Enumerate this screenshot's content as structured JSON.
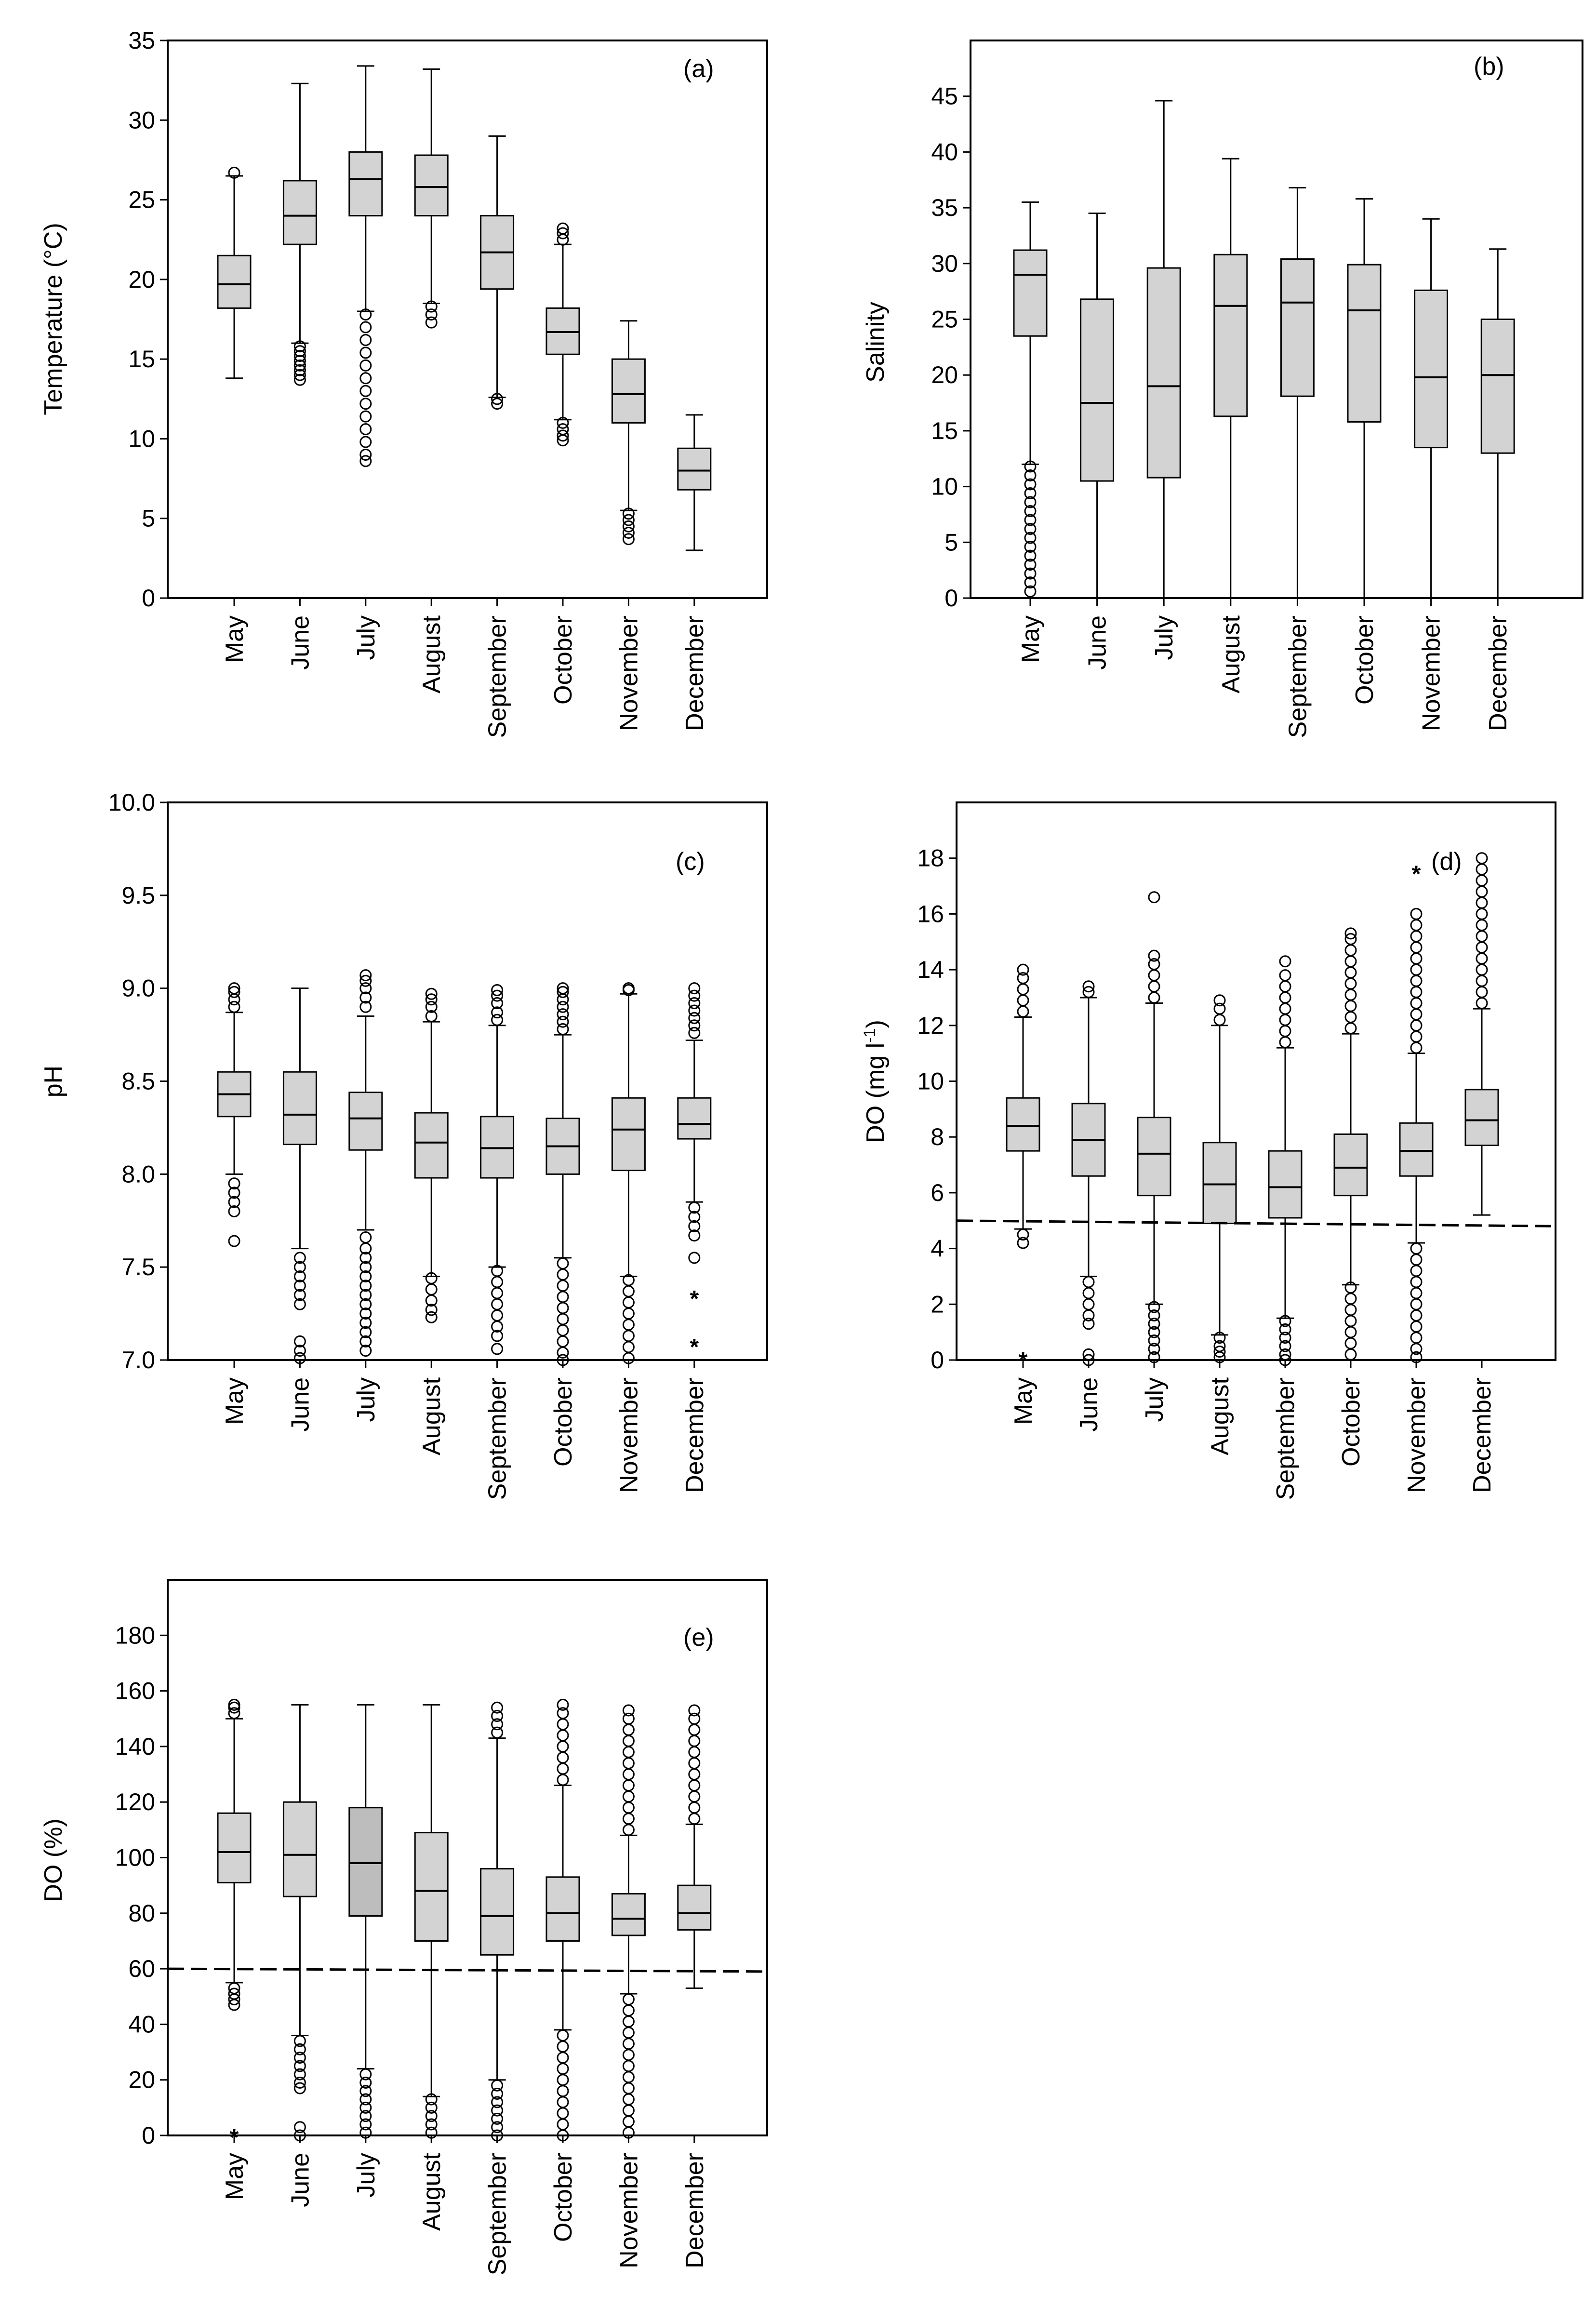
{
  "figure": {
    "months": [
      "May",
      "June",
      "July",
      "August",
      "September",
      "October",
      "November",
      "December"
    ]
  },
  "chart_data": [
    {
      "id": "a",
      "type": "boxplot",
      "panel_label": "(a)",
      "ylabel": "Temperature (°C)",
      "ylim": [
        0,
        35
      ],
      "yticks": [
        0,
        5,
        10,
        15,
        20,
        25,
        30,
        35
      ],
      "ytick_labels": [
        "0",
        "5",
        "10",
        "15",
        "20",
        "25",
        "30",
        "35"
      ],
      "categories": [
        "May",
        "June",
        "July",
        "August",
        "September",
        "October",
        "November",
        "December"
      ],
      "boxes": [
        {
          "min": 13.8,
          "q1": 18.2,
          "median": 19.7,
          "q3": 21.5,
          "max": 26.5,
          "outliers_high": [
            26.7
          ],
          "outliers_low": []
        },
        {
          "min": 16.0,
          "q1": 22.2,
          "median": 24.0,
          "q3": 26.2,
          "max": 32.3,
          "outliers_high": [],
          "outliers_low": [
            15.8,
            15.5,
            15.2,
            14.9,
            14.6,
            14.3,
            14.0,
            13.7
          ]
        },
        {
          "min": 18.0,
          "q1": 24.0,
          "median": 26.3,
          "q3": 28.0,
          "max": 33.4,
          "outliers_high": [],
          "outliers_low": [
            17.8,
            17.0,
            16.2,
            15.4,
            14.6,
            13.8,
            13.0,
            12.2,
            11.4,
            10.6,
            9.8,
            9.0,
            8.6
          ]
        },
        {
          "min": 18.5,
          "q1": 24.0,
          "median": 25.8,
          "q3": 27.8,
          "max": 33.2,
          "outliers_high": [],
          "outliers_low": [
            18.3,
            17.8,
            17.3
          ]
        },
        {
          "min": 12.6,
          "q1": 19.4,
          "median": 21.7,
          "q3": 24.0,
          "max": 29.0,
          "outliers_high": [],
          "outliers_low": [
            12.5,
            12.2
          ]
        },
        {
          "min": 11.2,
          "q1": 15.3,
          "median": 16.7,
          "q3": 18.2,
          "max": 22.2,
          "outliers_high": [
            22.5,
            22.9,
            23.2
          ],
          "outliers_low": [
            11.0,
            10.6,
            10.2,
            9.9
          ]
        },
        {
          "min": 5.5,
          "q1": 11.0,
          "median": 12.8,
          "q3": 15.0,
          "max": 17.4,
          "outliers_high": [],
          "outliers_low": [
            5.3,
            4.9,
            4.5,
            4.1,
            3.7
          ]
        },
        {
          "min": 3.0,
          "q1": 6.8,
          "median": 8.0,
          "q3": 9.4,
          "max": 11.5,
          "outliers_high": [],
          "outliers_low": []
        }
      ],
      "reference_line": null
    },
    {
      "id": "b",
      "type": "boxplot",
      "panel_label": "(b)",
      "ylabel": "Salinity",
      "ylim": [
        0,
        50
      ],
      "yticks": [
        0,
        5,
        10,
        15,
        20,
        25,
        30,
        35,
        40,
        45
      ],
      "ytick_labels": [
        "0",
        "5",
        "10",
        "15",
        "20",
        "25",
        "30",
        "35",
        "40",
        "45"
      ],
      "categories": [
        "May",
        "June",
        "July",
        "August",
        "September",
        "October",
        "November",
        "December"
      ],
      "boxes": [
        {
          "min": 12.0,
          "q1": 23.5,
          "median": 29.0,
          "q3": 31.2,
          "max": 35.5,
          "outliers_high": [],
          "outliers_low": [
            11.8,
            11.0,
            10.2,
            9.4,
            8.6,
            7.8,
            7.0,
            6.2,
            5.4,
            4.6,
            3.8,
            3.0,
            2.2,
            1.4,
            0.6
          ]
        },
        {
          "min": 0,
          "q1": 10.5,
          "median": 17.5,
          "q3": 26.8,
          "max": 34.5,
          "outliers_high": [],
          "outliers_low": []
        },
        {
          "min": 0,
          "q1": 10.8,
          "median": 19.0,
          "q3": 29.6,
          "max": 44.6,
          "outliers_high": [],
          "outliers_low": []
        },
        {
          "min": 0,
          "q1": 16.3,
          "median": 26.2,
          "q3": 30.8,
          "max": 39.4,
          "outliers_high": [],
          "outliers_low": []
        },
        {
          "min": 0,
          "q1": 18.1,
          "median": 26.5,
          "q3": 30.4,
          "max": 36.8,
          "outliers_high": [],
          "outliers_low": []
        },
        {
          "min": 0,
          "q1": 15.8,
          "median": 25.8,
          "q3": 29.9,
          "max": 35.8,
          "outliers_high": [],
          "outliers_low": []
        },
        {
          "min": 0,
          "q1": 13.5,
          "median": 19.8,
          "q3": 27.6,
          "max": 34.0,
          "outliers_high": [],
          "outliers_low": []
        },
        {
          "min": 0,
          "q1": 13.0,
          "median": 20.0,
          "q3": 25.0,
          "max": 31.3,
          "outliers_high": [],
          "outliers_low": []
        }
      ],
      "reference_line": null
    },
    {
      "id": "c",
      "type": "boxplot",
      "panel_label": "(c)",
      "ylabel": "pH",
      "ylim": [
        7.0,
        10.0
      ],
      "yticks": [
        7.0,
        7.5,
        8.0,
        8.5,
        9.0,
        9.5,
        10.0
      ],
      "ytick_labels": [
        "7.0",
        "7.5",
        "8.0",
        "8.5",
        "9.0",
        "9.5",
        "10.0"
      ],
      "categories": [
        "May",
        "June",
        "July",
        "August",
        "September",
        "October",
        "November",
        "December"
      ],
      "boxes": [
        {
          "min": 8.0,
          "q1": 8.31,
          "median": 8.43,
          "q3": 8.55,
          "max": 8.87,
          "outliers_high": [
            8.9,
            8.94,
            8.98,
            9.0
          ],
          "outliers_low": [
            7.95,
            7.9,
            7.85,
            7.8,
            7.64
          ]
        },
        {
          "min": 7.6,
          "q1": 8.16,
          "median": 8.32,
          "q3": 8.55,
          "max": 9.0,
          "outliers_high": [],
          "outliers_low": [
            7.55,
            7.5,
            7.45,
            7.4,
            7.35,
            7.3,
            7.1,
            7.05,
            7.01
          ]
        },
        {
          "min": 7.7,
          "q1": 8.13,
          "median": 8.3,
          "q3": 8.44,
          "max": 8.85,
          "outliers_high": [
            8.9,
            8.95,
            9.0,
            9.04,
            9.07
          ],
          "outliers_low": [
            7.66,
            7.6,
            7.55,
            7.5,
            7.45,
            7.4,
            7.35,
            7.3,
            7.25,
            7.2,
            7.15,
            7.1,
            7.05
          ]
        },
        {
          "min": 7.45,
          "q1": 7.98,
          "median": 8.17,
          "q3": 8.33,
          "max": 8.82,
          "outliers_high": [
            8.85,
            8.9,
            8.94,
            8.97
          ],
          "outliers_low": [
            7.44,
            7.38,
            7.32,
            7.27,
            7.23
          ]
        },
        {
          "min": 7.5,
          "q1": 7.98,
          "median": 8.14,
          "q3": 8.31,
          "max": 8.8,
          "outliers_high": [
            8.83,
            8.87,
            8.92,
            8.96,
            8.99
          ],
          "outliers_low": [
            7.48,
            7.42,
            7.36,
            7.3,
            7.24,
            7.18,
            7.13,
            7.06
          ]
        },
        {
          "min": 7.55,
          "q1": 8.0,
          "median": 8.15,
          "q3": 8.3,
          "max": 8.75,
          "outliers_high": [
            8.78,
            8.82,
            8.86,
            8.9,
            8.94,
            8.98,
            9.0
          ],
          "outliers_low": [
            7.52,
            7.46,
            7.4,
            7.34,
            7.28,
            7.22,
            7.16,
            7.1,
            7.04,
            7.0
          ]
        },
        {
          "min": 7.45,
          "q1": 8.02,
          "median": 8.24,
          "q3": 8.41,
          "max": 8.97,
          "outliers_high": [
            8.99,
            9.0
          ],
          "outliers_low": [
            7.43,
            7.37,
            7.31,
            7.25,
            7.19,
            7.13,
            7.07,
            7.01
          ]
        },
        {
          "min": 7.85,
          "q1": 8.19,
          "median": 8.27,
          "q3": 8.41,
          "max": 8.72,
          "outliers_high": [
            8.76,
            8.8,
            8.84,
            8.88,
            8.92,
            8.96,
            9.0
          ],
          "outliers_low": [
            7.82,
            7.77,
            7.72,
            7.67,
            7.55
          ],
          "extremes_low": [
            7.34,
            7.08
          ]
        }
      ],
      "reference_line": null
    },
    {
      "id": "d",
      "type": "boxplot",
      "panel_label": "(d)",
      "ylabel": "DO (mg l-1)",
      "ylim": [
        0,
        20
      ],
      "yticks": [
        0,
        2,
        4,
        6,
        8,
        10,
        12,
        14,
        16,
        18
      ],
      "ytick_labels": [
        "0",
        "2",
        "4",
        "6",
        "8",
        "10",
        "12",
        "14",
        "16",
        "18"
      ],
      "categories": [
        "May",
        "June",
        "July",
        "August",
        "September",
        "October",
        "November",
        "December"
      ],
      "boxes": [
        {
          "min": 4.7,
          "q1": 7.5,
          "median": 8.4,
          "q3": 9.4,
          "max": 12.3,
          "outliers_high": [
            12.5,
            12.9,
            13.3,
            13.7,
            14.0
          ],
          "outliers_low": [
            4.5,
            4.2
          ],
          "extremes_low": [
            0.05
          ]
        },
        {
          "min": 3.0,
          "q1": 6.6,
          "median": 7.9,
          "q3": 9.2,
          "max": 13.0,
          "outliers_high": [
            13.2,
            13.4
          ],
          "outliers_low": [
            2.8,
            2.4,
            2.0,
            1.6,
            1.3,
            0.2,
            0.0
          ]
        },
        {
          "min": 2.0,
          "q1": 5.9,
          "median": 7.4,
          "q3": 8.7,
          "max": 12.8,
          "outliers_high": [
            13.0,
            13.4,
            13.8,
            14.2,
            14.5,
            16.6
          ],
          "outliers_low": [
            1.9,
            1.6,
            1.3,
            1.0,
            0.7,
            0.4,
            0.1
          ]
        },
        {
          "min": 0.9,
          "q1": 4.9,
          "median": 6.3,
          "q3": 7.8,
          "max": 12.0,
          "outliers_high": [
            12.2,
            12.6,
            12.9
          ],
          "outliers_low": [
            0.8,
            0.5,
            0.3,
            0.1
          ]
        },
        {
          "min": 1.5,
          "q1": 5.1,
          "median": 6.2,
          "q3": 7.5,
          "max": 11.2,
          "outliers_high": [
            11.4,
            11.8,
            12.2,
            12.6,
            13.0,
            13.4,
            13.8,
            14.3
          ],
          "outliers_low": [
            1.4,
            1.1,
            0.8,
            0.5,
            0.2,
            0.0
          ]
        },
        {
          "min": 2.7,
          "q1": 5.9,
          "median": 6.9,
          "q3": 8.1,
          "max": 11.7,
          "outliers_high": [
            11.9,
            12.3,
            12.7,
            13.1,
            13.5,
            13.9,
            14.3,
            14.7,
            15.1,
            15.3
          ],
          "outliers_low": [
            2.6,
            2.2,
            1.8,
            1.4,
            1.0,
            0.6,
            0.2
          ]
        },
        {
          "min": 4.2,
          "q1": 6.6,
          "median": 7.5,
          "q3": 8.5,
          "max": 11.0,
          "outliers_high": [
            11.2,
            11.6,
            12.0,
            12.4,
            12.8,
            13.2,
            13.6,
            14.0,
            14.4,
            14.8,
            15.2,
            15.6,
            16.0
          ],
          "outliers_low": [
            4.0,
            3.6,
            3.2,
            2.8,
            2.4,
            2.0,
            1.6,
            1.2,
            0.8,
            0.4,
            0.1
          ],
          "extremes_high": [
            17.5
          ]
        },
        {
          "min": 5.2,
          "q1": 7.7,
          "median": 8.6,
          "q3": 9.7,
          "max": 12.6,
          "outliers_high": [
            12.8,
            13.2,
            13.6,
            14.0,
            14.4,
            14.8,
            15.2,
            15.6,
            16.0,
            16.4,
            16.8,
            17.2,
            17.6,
            18.0
          ],
          "outliers_low": []
        }
      ],
      "reference_line": {
        "value": 5,
        "end_value": 4.8,
        "style": "dashed"
      }
    },
    {
      "id": "e",
      "type": "boxplot",
      "panel_label": "(e)",
      "ylabel": "DO (%)",
      "ylim": [
        0,
        200
      ],
      "yticks": [
        0,
        20,
        40,
        60,
        80,
        100,
        120,
        140,
        160,
        180
      ],
      "ytick_labels": [
        "0",
        "20",
        "40",
        "60",
        "80",
        "100",
        "120",
        "140",
        "160",
        "180"
      ],
      "categories": [
        "May",
        "June",
        "July",
        "August",
        "September",
        "October",
        "November",
        "December"
      ],
      "boxes": [
        {
          "min": 55,
          "q1": 91,
          "median": 102,
          "q3": 116,
          "max": 150,
          "outliers_high": [
            152,
            154,
            155
          ],
          "outliers_low": [
            53,
            51,
            49,
            47
          ],
          "extremes_low": [
            0
          ]
        },
        {
          "min": 36,
          "q1": 86,
          "median": 101,
          "q3": 120,
          "max": 155,
          "outliers_high": [],
          "outliers_low": [
            34,
            31,
            28,
            25,
            22,
            19,
            17,
            3,
            0
          ]
        },
        {
          "min": 24,
          "q1": 79,
          "median": 98,
          "q3": 118,
          "max": 155,
          "outliers_high": [],
          "outliers_low": [
            22,
            19,
            16,
            13,
            10,
            7,
            4,
            1
          ]
        },
        {
          "min": 14,
          "q1": 70,
          "median": 88,
          "q3": 109,
          "max": 155,
          "outliers_high": [],
          "outliers_low": [
            13,
            10,
            7,
            4,
            1
          ]
        },
        {
          "min": 20,
          "q1": 65,
          "median": 79,
          "q3": 96,
          "max": 143,
          "outliers_high": [
            145,
            148,
            151,
            154
          ],
          "outliers_low": [
            18,
            15,
            12,
            9,
            6,
            3,
            0
          ]
        },
        {
          "min": 38,
          "q1": 70,
          "median": 80,
          "q3": 93,
          "max": 126,
          "outliers_high": [
            128,
            132,
            136,
            140,
            144,
            148,
            152,
            155
          ],
          "outliers_low": [
            36,
            32,
            28,
            24,
            20,
            16,
            12,
            8,
            4,
            0
          ]
        },
        {
          "min": 51,
          "q1": 72,
          "median": 78,
          "q3": 87,
          "max": 108,
          "outliers_high": [
            110,
            114,
            118,
            122,
            126,
            130,
            134,
            138,
            142,
            146,
            150,
            153
          ],
          "outliers_low": [
            49,
            45,
            41,
            37,
            33,
            29,
            25,
            21,
            17,
            13,
            9,
            5,
            1
          ]
        },
        {
          "min": 53,
          "q1": 74,
          "median": 80,
          "q3": 90,
          "max": 112,
          "outliers_high": [
            114,
            118,
            122,
            126,
            130,
            134,
            138,
            142,
            146,
            150,
            153
          ],
          "outliers_low": []
        }
      ],
      "reference_line": {
        "value": 60,
        "end_value": 59,
        "style": "dashed"
      }
    }
  ]
}
